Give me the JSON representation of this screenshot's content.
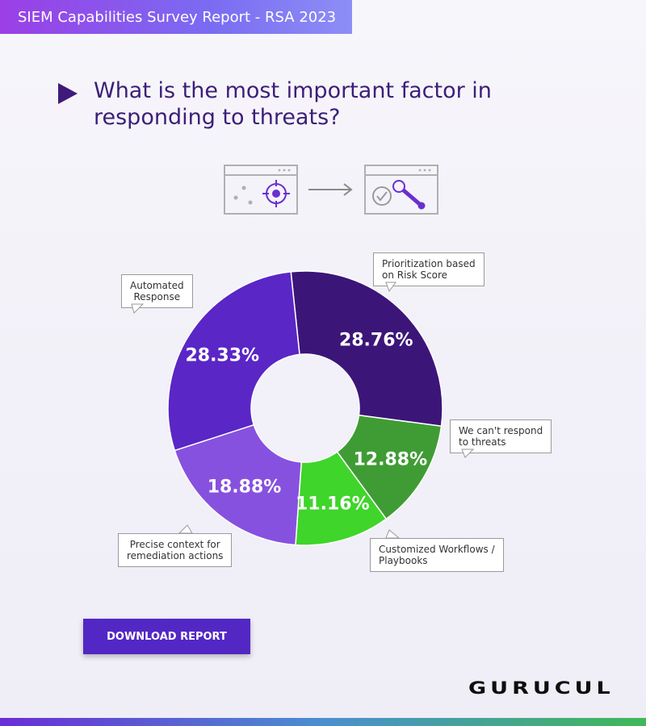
{
  "header": {
    "title": "SIEM Capabilities Survey Report - RSA 2023"
  },
  "question": {
    "text": "What is the most important factor in responding to threats?"
  },
  "chart_data": {
    "type": "pie",
    "title": "What is the most important factor in responding to threats?",
    "donut": true,
    "categories": [
      "Prioritization based on Risk Score",
      "We can't respond to threats",
      "Customized Workflows / Playbooks",
      "Precise context for remediation actions",
      "Automated Response"
    ],
    "values": [
      28.76,
      12.88,
      11.16,
      18.88,
      28.33
    ],
    "labels": [
      "28.76%",
      "12.88%",
      "11.16%",
      "18.88%",
      "28.33%"
    ],
    "callouts": [
      [
        "Prioritization based",
        "on Risk Score"
      ],
      [
        "We can't respond",
        "to threats"
      ],
      [
        "Customized Workflows /",
        "Playbooks"
      ],
      [
        "Precise context for",
        "remediation actions"
      ],
      [
        "Automated",
        "Response"
      ]
    ],
    "colors": [
      "#3c1578",
      "#3f9c34",
      "#3fd52a",
      "#8751df",
      "#5a26c6"
    ]
  },
  "cta": {
    "label": "DOWNLOAD REPORT"
  },
  "brand": {
    "name": "GURUCUL"
  },
  "colors": {
    "accent": "#5227c4",
    "heading": "#3c1f78"
  }
}
